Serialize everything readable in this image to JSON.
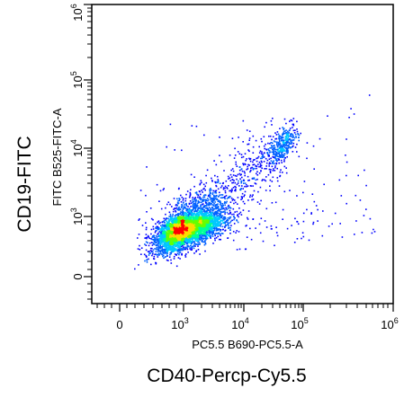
{
  "chart_data": {
    "type": "scatter",
    "title": "",
    "x_axis": {
      "channel_label": "PC5.5 B690-PC5.5-A",
      "marker_label": "CD40-Percp-Cy5.5",
      "scale": "biexponential",
      "tick_labels": [
        {
          "base": "0",
          "exp": ""
        },
        {
          "base": "10",
          "exp": "3"
        },
        {
          "base": "10",
          "exp": "4"
        },
        {
          "base": "10",
          "exp": "5"
        },
        {
          "base": "10",
          "exp": "6"
        }
      ]
    },
    "y_axis": {
      "channel_label": "FITC B525-FITC-A",
      "marker_label": "CD19-FITC",
      "scale": "biexponential",
      "tick_labels": [
        {
          "base": "0",
          "exp": ""
        },
        {
          "base": "10",
          "exp": "3"
        },
        {
          "base": "10",
          "exp": "4"
        },
        {
          "base": "10",
          "exp": "5"
        },
        {
          "base": "10",
          "exp": "6"
        }
      ]
    },
    "density_colormap": [
      "#0000ff",
      "#0060ff",
      "#00c8ff",
      "#00ff96",
      "#64ff00",
      "#ffdc00",
      "#ff0000"
    ],
    "populations": [
      {
        "name": "",
        "center_log_x": 3.0,
        "center_log_y": 2.65,
        "spread_log_x": 0.32,
        "spread_log_y": 0.3,
        "approx_events": 5000
      },
      {
        "name": "",
        "center_log_x": 4.65,
        "center_log_y": 4.05,
        "spread_log_x": 0.12,
        "spread_log_y": 0.14,
        "approx_events": 350
      }
    ],
    "grid": false,
    "legend": "none"
  }
}
